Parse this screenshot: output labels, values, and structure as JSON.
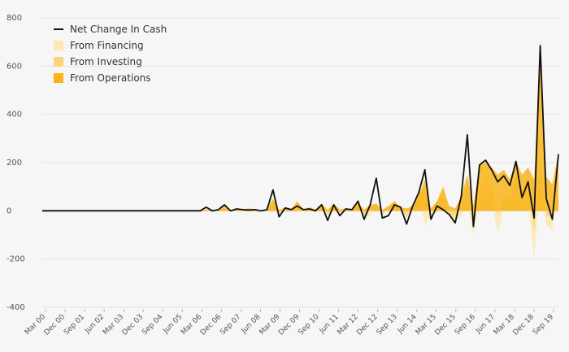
{
  "chart_data": {
    "type": "area",
    "title": "",
    "xlabel": "",
    "ylabel": "",
    "ylim": [
      -400,
      800
    ],
    "yticks": [
      800,
      600,
      400,
      200,
      0,
      -200,
      -400
    ],
    "xticks": [
      "Mar 00",
      "Dec 00",
      "Sep 01",
      "Jun 02",
      "Mar 03",
      "Dec 03",
      "Sep 04",
      "Jun 05",
      "Mar 06",
      "Dec 06",
      "Sep 07",
      "Jun 08",
      "Mar 09",
      "Dec 09",
      "Sep 10",
      "Jun 11",
      "Mar 12",
      "Dec 12",
      "Sep 13",
      "Jun 14",
      "Mar 15",
      "Dec 15",
      "Sep 16",
      "Jun 17",
      "Mar 18",
      "Dec 18",
      "Sep 19"
    ],
    "legend": [
      {
        "name": "Net Change In Cash",
        "kind": "line"
      },
      {
        "name": "From Financing",
        "kind": "area"
      },
      {
        "name": "From Investing",
        "kind": "area"
      },
      {
        "name": "From Operations",
        "kind": "area"
      }
    ],
    "colors": {
      "net": "#111111",
      "financing": "#fde7b4",
      "investing": "#fcd47a",
      "operations": "#f7b51b",
      "grid": "#e3e3e3",
      "zero": "#c8c8c8"
    },
    "series": [
      {
        "name": "Net Change In Cash",
        "values": [
          0,
          0,
          0,
          0,
          0,
          0,
          0,
          0,
          0,
          0,
          0,
          0,
          0,
          0,
          0,
          0,
          0,
          0,
          0,
          0,
          0,
          0,
          0,
          0,
          0,
          0,
          0,
          15,
          0,
          5,
          25,
          0,
          8,
          5,
          3,
          5,
          0,
          5,
          87,
          -25,
          12,
          5,
          20,
          5,
          8,
          0,
          25,
          -40,
          25,
          -20,
          8,
          5,
          40,
          -35,
          25,
          135,
          -30,
          -20,
          25,
          15,
          -55,
          20,
          75,
          170,
          -35,
          20,
          5,
          -15,
          -50,
          60,
          315,
          -65,
          190,
          210,
          170,
          120,
          145,
          105,
          205,
          55,
          120,
          -30,
          685,
          50,
          -35,
          235
        ]
      },
      {
        "name": "From Financing",
        "values": [
          0,
          0,
          0,
          0,
          0,
          0,
          0,
          0,
          0,
          0,
          0,
          0,
          0,
          0,
          0,
          0,
          0,
          0,
          0,
          0,
          0,
          0,
          0,
          0,
          0,
          0,
          0,
          5,
          -5,
          0,
          5,
          -3,
          3,
          5,
          15,
          3,
          0,
          5,
          20,
          -10,
          0,
          3,
          5,
          0,
          5,
          0,
          10,
          -15,
          10,
          -10,
          5,
          3,
          10,
          -25,
          -20,
          10,
          -20,
          10,
          20,
          10,
          -15,
          20,
          80,
          -60,
          -20,
          -10,
          20,
          -20,
          -40,
          -20,
          40,
          -100,
          40,
          50,
          40,
          -90,
          20,
          40,
          60,
          10,
          40,
          -200,
          130,
          -60,
          -80,
          100
        ]
      },
      {
        "name": "From Investing",
        "values": [
          0,
          0,
          0,
          0,
          0,
          0,
          0,
          0,
          0,
          0,
          0,
          0,
          0,
          0,
          0,
          0,
          0,
          0,
          0,
          0,
          0,
          0,
          0,
          0,
          0,
          0,
          0,
          5,
          0,
          3,
          10,
          -3,
          0,
          3,
          5,
          0,
          3,
          3,
          40,
          -10,
          8,
          3,
          30,
          3,
          10,
          3,
          25,
          -20,
          25,
          -10,
          8,
          3,
          40,
          -25,
          10,
          25,
          -15,
          20,
          35,
          10,
          -30,
          15,
          90,
          80,
          5,
          35,
          80,
          -20,
          -30,
          20,
          120,
          -60,
          80,
          150,
          100,
          -20,
          60,
          50,
          150,
          40,
          160,
          -90,
          200,
          -20,
          -30,
          80
        ]
      },
      {
        "name": "From Operations",
        "values": [
          1,
          1,
          1,
          1,
          1,
          1,
          1,
          1,
          1,
          1,
          1,
          1,
          1,
          1,
          1,
          1,
          1,
          1,
          1,
          1,
          1,
          1,
          1,
          1,
          1,
          1,
          1,
          6,
          2,
          6,
          22,
          2,
          8,
          6,
          10,
          6,
          2,
          8,
          50,
          5,
          12,
          6,
          40,
          6,
          14,
          6,
          30,
          5,
          30,
          6,
          10,
          6,
          35,
          5,
          25,
          30,
          5,
          20,
          40,
          15,
          10,
          20,
          60,
          130,
          10,
          40,
          100,
          20,
          10,
          60,
          150,
          20,
          190,
          200,
          180,
          150,
          170,
          130,
          210,
          150,
          180,
          130,
          710,
          140,
          110,
          240
        ]
      }
    ]
  }
}
